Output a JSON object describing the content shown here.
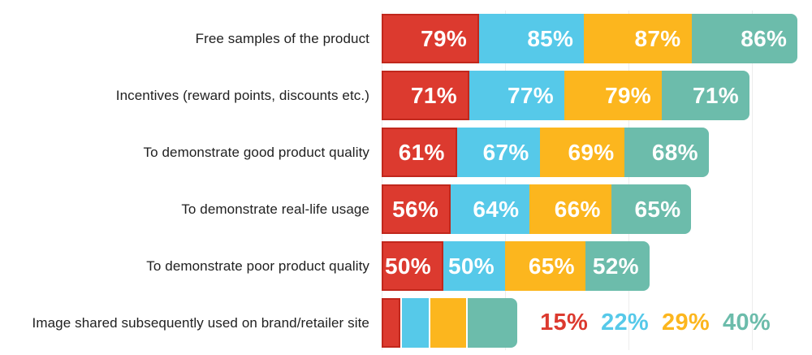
{
  "chart_data": {
    "type": "bar",
    "orientation": "horizontal",
    "title": "",
    "xlabel": "",
    "ylabel": "",
    "grid": true,
    "gridline_color": "#ededed",
    "background_color": "#ffffff",
    "category_label_color": "#212121",
    "inside_label_color": "#ffffff",
    "value_suffix": "%",
    "axis_units_per_gridline": 100,
    "xlim": [
      0,
      349
    ],
    "categories": [
      "Free samples of the product",
      "Incentives (reward points, discounts etc.)",
      "To demonstrate good product quality",
      "To demonstrate real-life usage",
      "To demonstrate poor product quality",
      "Image shared subsequently used on brand/retailer site"
    ],
    "series": [
      {
        "name": "red",
        "color": "#dc3a2f",
        "border_color": "#c1271c",
        "values": [
          79,
          71,
          61,
          56,
          50,
          15
        ],
        "labels": [
          "79%",
          "71%",
          "61%",
          "56%",
          "50%",
          "15%"
        ]
      },
      {
        "name": "sky-blue",
        "color": "#56c9e9",
        "border_color": "",
        "values": [
          85,
          77,
          67,
          64,
          50,
          22
        ],
        "labels": [
          "85%",
          "77%",
          "67%",
          "64%",
          "50%",
          "22%"
        ]
      },
      {
        "name": "yellow",
        "color": "#fcb61e",
        "border_color": "",
        "values": [
          87,
          79,
          69,
          66,
          65,
          29
        ],
        "labels": [
          "87%",
          "79%",
          "69%",
          "66%",
          "65%",
          "29%"
        ]
      },
      {
        "name": "teal",
        "color": "#6cbcab",
        "border_color": "",
        "values": [
          86,
          71,
          68,
          65,
          52,
          40
        ],
        "labels": [
          "86%",
          "71%",
          "68%",
          "65%",
          "52%",
          "40%"
        ]
      }
    ],
    "outside_label_row_index": 5,
    "label_placement": "inside-end, except last row which shows labels outside in series colors"
  }
}
